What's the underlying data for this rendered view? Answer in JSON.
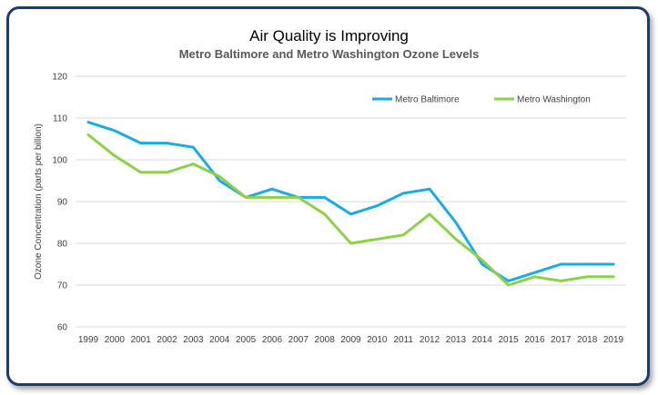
{
  "chart_data": {
    "type": "line",
    "title": "Air Quality is Improving",
    "subtitle": "Metro Baltimore and Metro Washington Ozone Levels",
    "xlabel": "",
    "ylabel": "Ozone Concentration (parts per billion)",
    "ylim": [
      60,
      120
    ],
    "yticks": [
      60,
      70,
      80,
      90,
      100,
      110,
      120
    ],
    "grid": true,
    "legend_position": "top-right",
    "categories": [
      "1999",
      "2000",
      "2001",
      "2002",
      "2003",
      "2004",
      "2005",
      "2006",
      "2007",
      "2008",
      "2009",
      "2010",
      "2011",
      "2012",
      "2013",
      "2014",
      "2015",
      "2016",
      "2017",
      "2018",
      "2019"
    ],
    "series": [
      {
        "name": "Metro Baltimore",
        "color": "#1aaae6",
        "values": [
          109,
          107,
          104,
          104,
          103,
          95,
          91,
          93,
          91,
          91,
          87,
          89,
          92,
          93,
          85,
          75,
          71,
          73,
          75,
          75,
          75
        ]
      },
      {
        "name": "Metro Washington",
        "color": "#8dd04a",
        "values": [
          106,
          101,
          97,
          97,
          99,
          96,
          91,
          91,
          91,
          87,
          80,
          81,
          82,
          87,
          81,
          76,
          70,
          72,
          71,
          72,
          72
        ]
      }
    ]
  }
}
